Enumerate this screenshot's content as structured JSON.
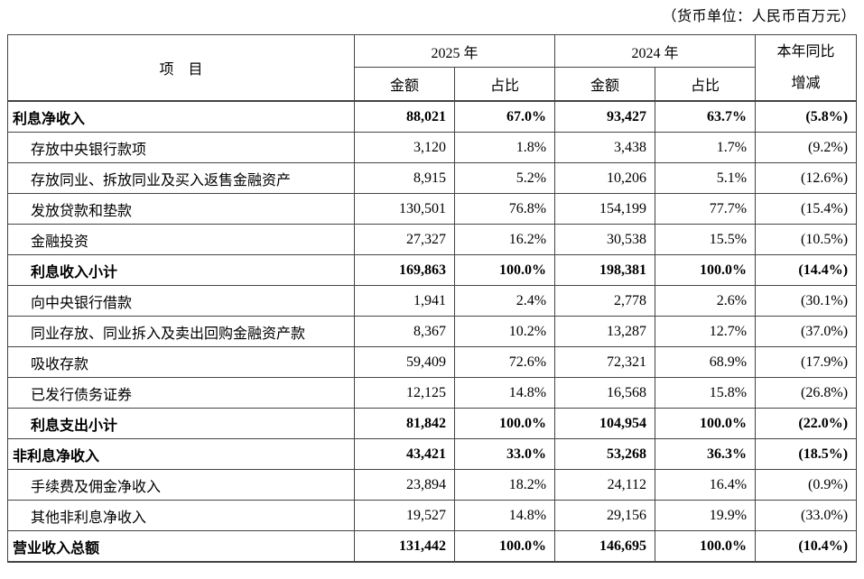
{
  "unit_note": "（货币单位：人民币百万元）",
  "colors": {
    "background": "#ffffff",
    "text": "#000000",
    "border": "#444444"
  },
  "table": {
    "header": {
      "item": "项　目",
      "year_2025": "2025 年",
      "year_2024": "2024 年",
      "amount_2025": "金额",
      "share_2025": "占比",
      "amount_2024": "金额",
      "share_2024": "占比",
      "yoy_line1": "本年同比",
      "yoy_line2": "增减"
    },
    "rows": [
      {
        "label": "利息净收入",
        "bold": true,
        "indent": false,
        "amount_2025": "88,021",
        "share_2025": "67.0%",
        "amount_2024": "93,427",
        "share_2024": "63.7%",
        "yoy": "(5.8%)"
      },
      {
        "label": "存放中央银行款项",
        "bold": false,
        "indent": true,
        "amount_2025": "3,120",
        "share_2025": "1.8%",
        "amount_2024": "3,438",
        "share_2024": "1.7%",
        "yoy": "(9.2%)"
      },
      {
        "label": "存放同业、拆放同业及买入返售金融资产",
        "bold": false,
        "indent": true,
        "amount_2025": "8,915",
        "share_2025": "5.2%",
        "amount_2024": "10,206",
        "share_2024": "5.1%",
        "yoy": "(12.6%)"
      },
      {
        "label": "发放贷款和垫款",
        "bold": false,
        "indent": true,
        "amount_2025": "130,501",
        "share_2025": "76.8%",
        "amount_2024": "154,199",
        "share_2024": "77.7%",
        "yoy": "(15.4%)"
      },
      {
        "label": "金融投资",
        "bold": false,
        "indent": true,
        "amount_2025": "27,327",
        "share_2025": "16.2%",
        "amount_2024": "30,538",
        "share_2024": "15.5%",
        "yoy": "(10.5%)"
      },
      {
        "label": "利息收入小计",
        "bold": true,
        "indent": true,
        "amount_2025": "169,863",
        "share_2025": "100.0%",
        "amount_2024": "198,381",
        "share_2024": "100.0%",
        "yoy": "(14.4%)"
      },
      {
        "label": "向中央银行借款",
        "bold": false,
        "indent": true,
        "amount_2025": "1,941",
        "share_2025": "2.4%",
        "amount_2024": "2,778",
        "share_2024": "2.6%",
        "yoy": "(30.1%)"
      },
      {
        "label": "同业存放、同业拆入及卖出回购金融资产款",
        "bold": false,
        "indent": true,
        "amount_2025": "8,367",
        "share_2025": "10.2%",
        "amount_2024": "13,287",
        "share_2024": "12.7%",
        "yoy": "(37.0%)"
      },
      {
        "label": "吸收存款",
        "bold": false,
        "indent": true,
        "amount_2025": "59,409",
        "share_2025": "72.6%",
        "amount_2024": "72,321",
        "share_2024": "68.9%",
        "yoy": "(17.9%)"
      },
      {
        "label": "已发行债务证券",
        "bold": false,
        "indent": true,
        "amount_2025": "12,125",
        "share_2025": "14.8%",
        "amount_2024": "16,568",
        "share_2024": "15.8%",
        "yoy": "(26.8%)"
      },
      {
        "label": "利息支出小计",
        "bold": true,
        "indent": true,
        "amount_2025": "81,842",
        "share_2025": "100.0%",
        "amount_2024": "104,954",
        "share_2024": "100.0%",
        "yoy": "(22.0%)"
      },
      {
        "label": "非利息净收入",
        "bold": true,
        "indent": false,
        "amount_2025": "43,421",
        "share_2025": "33.0%",
        "amount_2024": "53,268",
        "share_2024": "36.3%",
        "yoy": "(18.5%)"
      },
      {
        "label": "手续费及佣金净收入",
        "bold": false,
        "indent": true,
        "amount_2025": "23,894",
        "share_2025": "18.2%",
        "amount_2024": "24,112",
        "share_2024": "16.4%",
        "yoy": "(0.9%)"
      },
      {
        "label": "其他非利息净收入",
        "bold": false,
        "indent": true,
        "amount_2025": "19,527",
        "share_2025": "14.8%",
        "amount_2024": "29,156",
        "share_2024": "19.9%",
        "yoy": "(33.0%)"
      },
      {
        "label": "营业收入总额",
        "bold": true,
        "indent": false,
        "amount_2025": "131,442",
        "share_2025": "100.0%",
        "amount_2024": "146,695",
        "share_2024": "100.0%",
        "yoy": "(10.4%)"
      }
    ]
  }
}
